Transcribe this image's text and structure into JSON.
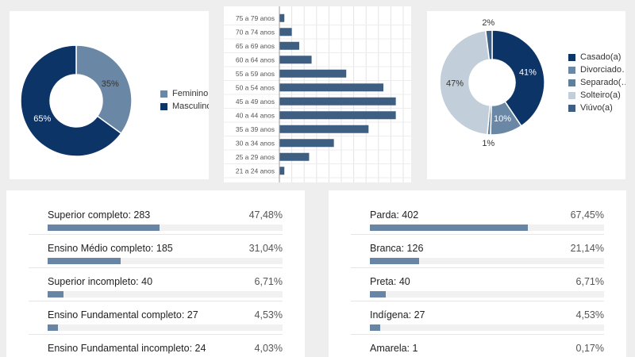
{
  "colors": {
    "dark": "#0d3466",
    "mid": "#6a87a6",
    "gray": "#5f7f99",
    "light": "#c2ced9",
    "bar": "#3e5f82",
    "listbar": "#6885a5"
  },
  "chart_data": [
    {
      "type": "pie",
      "labels": [
        "Feminino",
        "Masculino"
      ],
      "values": [
        35,
        65
      ],
      "value_labels": [
        "35%",
        "65%"
      ],
      "colors": [
        "#6a87a6",
        "#0d3466"
      ],
      "legend": "right"
    },
    {
      "type": "bar",
      "orientation": "horizontal",
      "categories": [
        "75 a 79 anos",
        "70 a 74 anos",
        "65 a 69 anos",
        "60 a 64 anos",
        "55 a 59 anos",
        "50 a 54 anos",
        "45 a 49 anos",
        "40 a 44 anos",
        "35 a 39 anos",
        "30 a 34 anos",
        "25 a 29 anos",
        "21 a 24 anos"
      ],
      "values": [
        2,
        5,
        8,
        13,
        27,
        42,
        47,
        47,
        36,
        22,
        12,
        2
      ],
      "grid": true
    },
    {
      "type": "pie",
      "labels": [
        "Casado(a)",
        "Divorciado…",
        "Separado(…",
        "Solteiro(a)",
        "Viúvo(a)"
      ],
      "values": [
        41,
        10,
        1,
        47,
        2
      ],
      "value_labels": [
        "41%",
        "10%",
        "1%",
        "47%",
        "2%"
      ],
      "colors": [
        "#0d3466",
        "#6a87a6",
        "#5f7f99",
        "#c2ced9",
        "#3e5f82"
      ],
      "legend": "right"
    },
    {
      "type": "table",
      "rows": [
        {
          "label": "Superior completo: 283",
          "pct": "47,48%",
          "value": 47.48
        },
        {
          "label": "Ensino Médio completo: 185",
          "pct": "31,04%",
          "value": 31.04
        },
        {
          "label": "Superior incompleto: 40",
          "pct": "6,71%",
          "value": 6.71
        },
        {
          "label": "Ensino Fundamental completo: 27",
          "pct": "4,53%",
          "value": 4.53
        },
        {
          "label": "Ensino Fundamental incompleto: 24",
          "pct": "4,03%",
          "value": 4.03
        }
      ]
    },
    {
      "type": "table",
      "rows": [
        {
          "label": "Parda: 402",
          "pct": "67,45%",
          "value": 67.45
        },
        {
          "label": "Branca: 126",
          "pct": "21,14%",
          "value": 21.14
        },
        {
          "label": "Preta: 40",
          "pct": "6,71%",
          "value": 6.71
        },
        {
          "label": "Indígena: 27",
          "pct": "4,53%",
          "value": 4.53
        },
        {
          "label": "Amarela: 1",
          "pct": "0,17%",
          "value": 0.17
        }
      ]
    }
  ]
}
